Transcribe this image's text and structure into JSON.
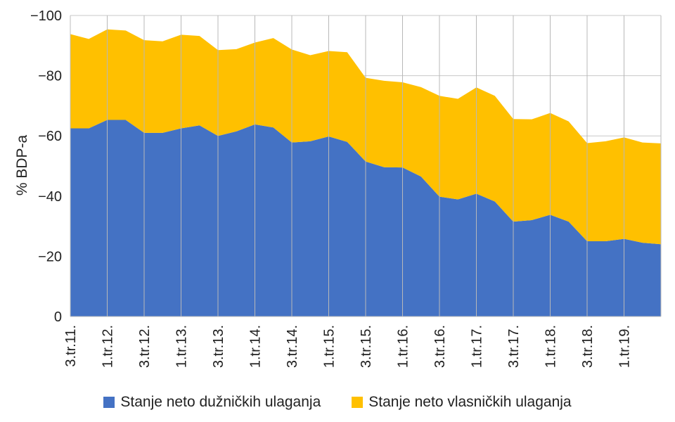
{
  "chart_data": {
    "type": "area",
    "stacked": true,
    "ylabel": "% BDP-a",
    "ylim": [
      0,
      -100
    ],
    "yticks": [
      0,
      -20,
      -40,
      -60,
      -80,
      -100
    ],
    "ytick_labels": [
      "0",
      "−20",
      "−40",
      "−60",
      "−80",
      "−100"
    ],
    "grid": true,
    "legend": "bottom",
    "x_tick_labels": [
      "3.tr.11.",
      "1.tr.12.",
      "3.tr.12.",
      "1.tr.13.",
      "3.tr.13.",
      "1.tr.14.",
      "3.tr.14.",
      "1.tr.15.",
      "3.tr.15.",
      "1.tr.16.",
      "3.tr.16.",
      "1.tr.17.",
      "3.tr.17.",
      "1.tr.18.",
      "3.tr.18.",
      "1.tr.19."
    ],
    "n_points": 33,
    "series": [
      {
        "name": "Stanje neto dužničkih ulaganja",
        "color": "#4472C4",
        "values": [
          -62.5,
          -62.5,
          -65.3,
          -65.3,
          -61,
          -61,
          -62.5,
          -63.5,
          -60,
          -61.5,
          -63.8,
          -62.8,
          -57.8,
          -58.2,
          -59.8,
          -58,
          -51.5,
          -49.6,
          -49.5,
          -46.5,
          -39.8,
          -38.9,
          -40.8,
          -38.2,
          -31.5,
          -32,
          -33.8,
          -31.5,
          -25,
          -25,
          -25.8,
          -24.5,
          -24
        ]
      },
      {
        "name": "Stanje neto vlasničkih ulaganja",
        "color": "#FFC000",
        "values": [
          -31.3,
          -29.7,
          -30.1,
          -29.7,
          -30.8,
          -30.4,
          -31.1,
          -29.7,
          -28.5,
          -27.3,
          -27.2,
          -29.7,
          -30.9,
          -28.6,
          -28.4,
          -29.8,
          -27.8,
          -28.7,
          -28.3,
          -29.7,
          -33.5,
          -33.4,
          -35.3,
          -35.1,
          -34.1,
          -33.5,
          -33.8,
          -33.3,
          -32.6,
          -33.2,
          -33.7,
          -33.3,
          -33.5
        ]
      }
    ]
  }
}
